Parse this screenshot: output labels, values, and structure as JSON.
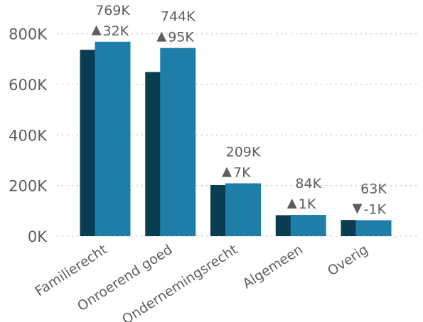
{
  "colors": {
    "prior": "#0b3d52",
    "current": "#1f7ea8",
    "text": "#605e5c"
  },
  "chart_data": {
    "type": "bar",
    "categories": [
      "Familierecht",
      "Onroerend goed",
      "Ondernemingsrecht",
      "Algemeen",
      "Overig"
    ],
    "series": [
      {
        "values": [
          737000,
          649000,
          202000,
          83000,
          64000
        ]
      },
      {
        "values": [
          769000,
          744000,
          209000,
          84000,
          63000
        ]
      }
    ],
    "value_labels": [
      "769K",
      "744K",
      "209K",
      "84K",
      "63K"
    ],
    "change_labels": [
      "32K",
      "95K",
      "7K",
      "1K",
      "-1K"
    ],
    "change_direction": [
      "up",
      "up",
      "up",
      "up",
      "down"
    ],
    "y_ticks": [
      0,
      200000,
      400000,
      600000,
      800000
    ],
    "y_tick_labels": [
      "0K",
      "200K",
      "400K",
      "600K",
      "800K"
    ],
    "ylim": [
      0,
      830000
    ],
    "grid": true,
    "title": "",
    "xlabel": "",
    "ylabel": ""
  }
}
